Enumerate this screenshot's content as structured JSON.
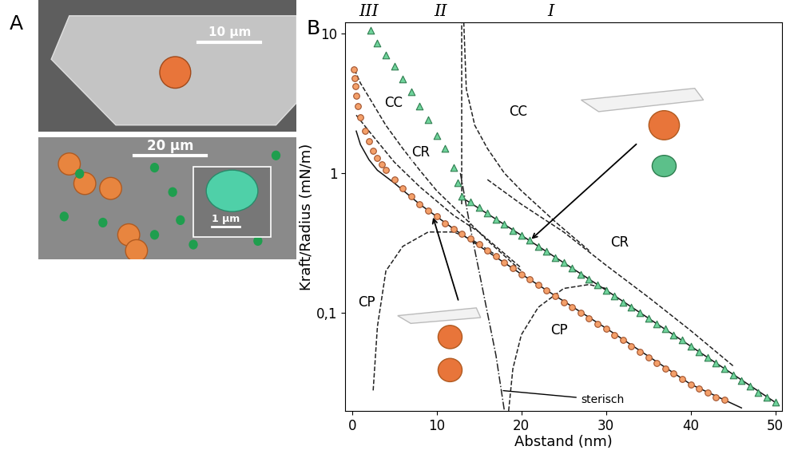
{
  "panel_a": {
    "label": "A",
    "scale_bars": [
      "10 µm",
      "20 µm",
      "1 µm"
    ]
  },
  "chart_data": {
    "type": "scatter",
    "panel_label": "B",
    "x_label": "Abstand (nm)",
    "y_label": "Kraft/Radius (mN/m)",
    "log": "y",
    "xlim": [
      -0.8,
      50.8
    ],
    "ylim": [
      0.02,
      12
    ],
    "xticks": [
      0,
      10,
      20,
      30,
      40,
      50
    ],
    "yticks": [
      {
        "value": 0.1,
        "label": "0,1"
      },
      1,
      10
    ],
    "regions": [
      {
        "label": "III",
        "x": 2
      },
      {
        "label": "II",
        "x": 10.5
      },
      {
        "label": "I",
        "x": 23.5
      }
    ],
    "series": [
      {
        "type": "line",
        "line_style": "dashed",
        "color": "#222222",
        "x": [
          0.3,
          1,
          2,
          4,
          6,
          8,
          10,
          13,
          16,
          20
        ],
        "values": [
          5.5,
          4.4,
          3.5,
          2.2,
          1.5,
          1.05,
          0.75,
          0.5,
          0.33,
          0.2
        ]
      },
      {
        "type": "line",
        "line_style": "dashed",
        "color": "#222222",
        "x": [
          0.5,
          2,
          5,
          8,
          12,
          15,
          20
        ],
        "values": [
          2.6,
          2.0,
          1.2,
          0.8,
          0.5,
          0.38,
          0.21
        ]
      },
      {
        "type": "line",
        "line_style": "dashed",
        "color": "#222222",
        "x": [
          2.5,
          3,
          4,
          6,
          9,
          12,
          14,
          17
        ],
        "values": [
          0.028,
          0.08,
          0.2,
          0.3,
          0.38,
          0.38,
          0.34,
          0.26
        ]
      },
      {
        "type": "line",
        "line_style": "dashed",
        "color": "#222222",
        "x": [
          13,
          13
        ],
        "values": [
          0.6,
          12
        ]
      },
      {
        "type": "line",
        "line_style": "dashed",
        "color": "#222222",
        "x": [
          13.2,
          13.5,
          14.5,
          16,
          18,
          20,
          24,
          28
        ],
        "values": [
          12,
          4,
          2.2,
          1.5,
          1.0,
          0.75,
          0.45,
          0.28
        ]
      },
      {
        "type": "line",
        "line_style": "dashed",
        "color": "#222222",
        "x": [
          16,
          20,
          25,
          30,
          35,
          40,
          45
        ],
        "values": [
          0.9,
          0.6,
          0.38,
          0.22,
          0.13,
          0.075,
          0.042
        ]
      },
      {
        "type": "line",
        "line_style": "dashed",
        "color": "#222222",
        "x": [
          18.5,
          19,
          20,
          22,
          25,
          28,
          30
        ],
        "values": [
          0.02,
          0.04,
          0.07,
          0.11,
          0.15,
          0.16,
          0.15
        ]
      },
      {
        "type": "line",
        "line_style": "dashdot",
        "color": "#222222",
        "x": [
          12.8,
          14,
          15,
          16,
          17,
          18
        ],
        "values": [
          1.0,
          0.4,
          0.2,
          0.1,
          0.05,
          0.02
        ]
      },
      {
        "type": "line",
        "line_style": "solid",
        "color": "#111111",
        "x": [
          0.5,
          1,
          2,
          3,
          5,
          8,
          12,
          20,
          30,
          40,
          46
        ],
        "values": [
          2.0,
          1.6,
          1.25,
          1.05,
          0.85,
          0.6,
          0.4,
          0.19,
          0.078,
          0.031,
          0.021
        ]
      },
      {
        "type": "line",
        "line_style": "solid",
        "color": "#111111",
        "x": [
          13.5,
          20,
          30,
          40,
          50
        ],
        "values": [
          0.64,
          0.36,
          0.146,
          0.058,
          0.023
        ]
      },
      {
        "type": "scatter",
        "marker": "circle",
        "color": "#f4a06a",
        "x": [
          0.2,
          0.3,
          0.4,
          0.5,
          0.7,
          1.0,
          1.5,
          2,
          2.5,
          3,
          3.5,
          4,
          5,
          6,
          7,
          8,
          9,
          10,
          11,
          12,
          13,
          14,
          15,
          16,
          17,
          18,
          19,
          20,
          21,
          22,
          23,
          24,
          25,
          26,
          27,
          28,
          29,
          30,
          31,
          32,
          33,
          34,
          35,
          36,
          37,
          38,
          39,
          40,
          41,
          42,
          43,
          44
        ],
        "values": [
          5.5,
          4.8,
          4.2,
          3.6,
          3.0,
          2.5,
          2.0,
          1.7,
          1.45,
          1.28,
          1.15,
          1.05,
          0.9,
          0.78,
          0.68,
          0.6,
          0.54,
          0.49,
          0.44,
          0.4,
          0.37,
          0.34,
          0.31,
          0.28,
          0.255,
          0.23,
          0.21,
          0.19,
          0.175,
          0.16,
          0.145,
          0.132,
          0.12,
          0.11,
          0.1,
          0.092,
          0.084,
          0.077,
          0.07,
          0.064,
          0.058,
          0.053,
          0.048,
          0.044,
          0.04,
          0.037,
          0.034,
          0.031,
          0.029,
          0.027,
          0.025,
          0.024
        ]
      },
      {
        "type": "scatter",
        "marker": "triangle",
        "color": "#6fd39b",
        "x": [
          2.2,
          3,
          4,
          5,
          6,
          7,
          8,
          9,
          10,
          11,
          12,
          12.5,
          13,
          14,
          15,
          16,
          17,
          18,
          19,
          20,
          21,
          22,
          23,
          24,
          25,
          26,
          27,
          28,
          29,
          30,
          31,
          32,
          33,
          34,
          35,
          36,
          37,
          38,
          39,
          40,
          41,
          42,
          43,
          44,
          45,
          46,
          47,
          48,
          49,
          50
        ],
        "values": [
          10.5,
          8.5,
          7.0,
          5.8,
          4.7,
          3.8,
          3.0,
          2.4,
          1.85,
          1.5,
          1.1,
          0.85,
          0.68,
          0.62,
          0.57,
          0.52,
          0.47,
          0.43,
          0.39,
          0.36,
          0.33,
          0.3,
          0.275,
          0.25,
          0.23,
          0.21,
          0.19,
          0.175,
          0.16,
          0.146,
          0.133,
          0.12,
          0.11,
          0.1,
          0.092,
          0.084,
          0.077,
          0.07,
          0.064,
          0.058,
          0.053,
          0.048,
          0.044,
          0.04,
          0.036,
          0.033,
          0.03,
          0.027,
          0.025,
          0.023
        ]
      }
    ],
    "annotations": [
      {
        "text": "CC",
        "x": 3.8,
        "y": 3.2
      },
      {
        "text": "CR",
        "x": 7.0,
        "y": 1.4
      },
      {
        "text": "CP",
        "x": 0.7,
        "y": 0.12
      },
      {
        "text": "CC",
        "x": 18.5,
        "y": 2.75
      },
      {
        "text": "CR",
        "x": 30.5,
        "y": 0.32
      },
      {
        "text": "CP",
        "x": 23.4,
        "y": 0.075
      },
      {
        "text": "sterisch",
        "x": 27,
        "y": 0.024,
        "target": [
          17.6,
          0.028
        ]
      }
    ]
  }
}
